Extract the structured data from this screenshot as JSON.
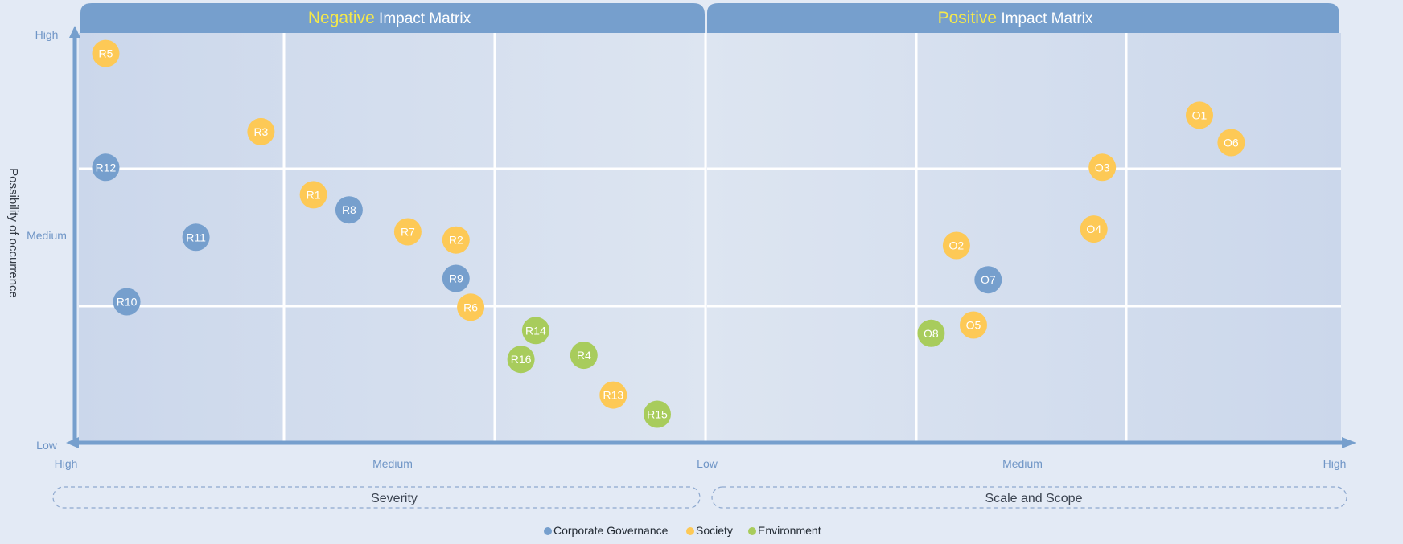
{
  "colors": {
    "background": "#e3eaf5",
    "panel_header": "#769fcd",
    "title_highlight": "#f5e84a",
    "axis": "#769fcd",
    "Corporate Governance": "#769fcd",
    "Society": "#fdc956",
    "Environment": "#a8cc5c"
  },
  "chart_data": [
    {
      "type": "scatter",
      "title_highlight": "Negative",
      "title_rest": " Impact Matrix",
      "xlabel": "Severity",
      "ylabel": "Possibility of occurrence",
      "x_ticks": [
        "High",
        "Medium",
        "Low"
      ],
      "y_ticks": [
        "High",
        "Medium",
        "Low"
      ],
      "xlim": [
        0,
        3
      ],
      "ylim": [
        0,
        3
      ],
      "x_direction": "reversed",
      "grid": true,
      "points": [
        {
          "label": "R5",
          "x": 2.86,
          "y": 2.85,
          "category": "Society"
        },
        {
          "label": "R3",
          "x": 2.12,
          "y": 2.28,
          "category": "Society"
        },
        {
          "label": "R12",
          "x": 2.86,
          "y": 2.02,
          "category": "Corporate Governance"
        },
        {
          "label": "R1",
          "x": 1.87,
          "y": 1.82,
          "category": "Society"
        },
        {
          "label": "R8",
          "x": 1.7,
          "y": 1.71,
          "category": "Corporate Governance"
        },
        {
          "label": "R11",
          "x": 2.43,
          "y": 1.51,
          "category": "Corporate Governance"
        },
        {
          "label": "R7",
          "x": 1.42,
          "y": 1.55,
          "category": "Society"
        },
        {
          "label": "R2",
          "x": 1.19,
          "y": 1.49,
          "category": "Society"
        },
        {
          "label": "R9",
          "x": 1.19,
          "y": 1.21,
          "category": "Corporate Governance"
        },
        {
          "label": "R10",
          "x": 2.76,
          "y": 1.04,
          "category": "Corporate Governance"
        },
        {
          "label": "R6",
          "x": 1.12,
          "y": 1.0,
          "category": "Society"
        },
        {
          "label": "R14",
          "x": 0.81,
          "y": 0.83,
          "category": "Environment"
        },
        {
          "label": "R16",
          "x": 0.88,
          "y": 0.62,
          "category": "Environment"
        },
        {
          "label": "R4",
          "x": 0.58,
          "y": 0.65,
          "category": "Environment"
        },
        {
          "label": "R13",
          "x": 0.44,
          "y": 0.36,
          "category": "Society"
        },
        {
          "label": "R15",
          "x": 0.23,
          "y": 0.22,
          "category": "Environment"
        }
      ]
    },
    {
      "type": "scatter",
      "title_highlight": "Positive",
      "title_rest": " Impact Matrix",
      "xlabel": "Scale and Scope",
      "ylabel": "Possibility of occurrence",
      "x_ticks": [
        "Low",
        "Medium",
        "High"
      ],
      "y_ticks": [
        "High",
        "Medium",
        "Low"
      ],
      "xlim": [
        0,
        3
      ],
      "ylim": [
        0,
        3
      ],
      "x_direction": "normal",
      "grid": true,
      "points": [
        {
          "label": "O1",
          "x": 2.33,
          "y": 2.4,
          "category": "Society"
        },
        {
          "label": "O6",
          "x": 2.48,
          "y": 2.2,
          "category": "Society"
        },
        {
          "label": "O3",
          "x": 1.87,
          "y": 2.02,
          "category": "Society"
        },
        {
          "label": "O4",
          "x": 1.83,
          "y": 1.57,
          "category": "Society"
        },
        {
          "label": "O2",
          "x": 1.18,
          "y": 1.45,
          "category": "Society"
        },
        {
          "label": "O7",
          "x": 1.33,
          "y": 1.2,
          "category": "Corporate Governance"
        },
        {
          "label": "O5",
          "x": 1.26,
          "y": 0.87,
          "category": "Society"
        },
        {
          "label": "O8",
          "x": 1.06,
          "y": 0.81,
          "category": "Environment"
        }
      ]
    }
  ],
  "legend": {
    "placement": "bottom-center",
    "items": [
      "Corporate Governance",
      "Society",
      "Environment"
    ]
  }
}
